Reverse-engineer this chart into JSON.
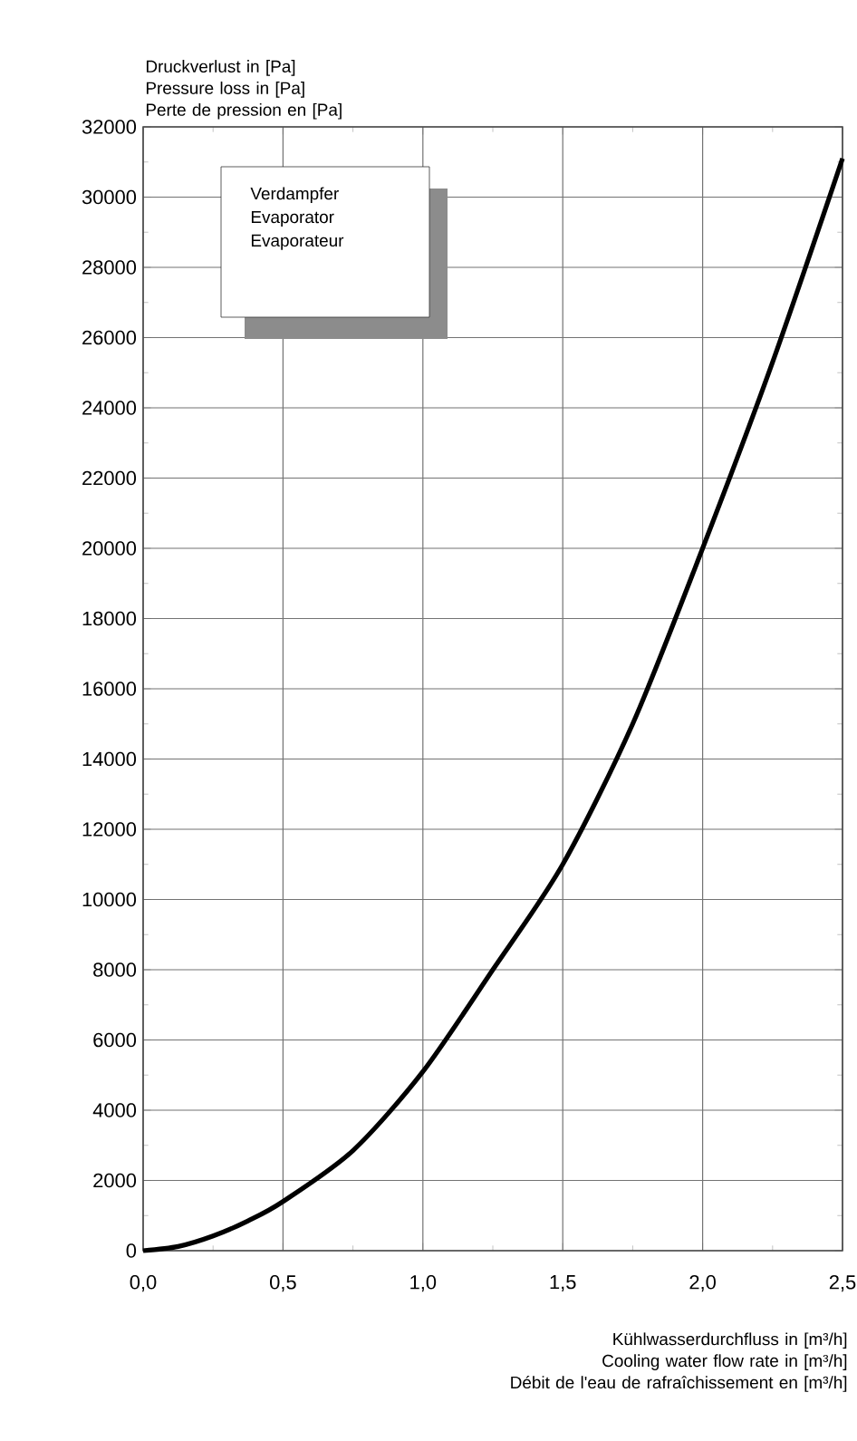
{
  "chart_data": {
    "type": "line",
    "ylabel": "Druckverlust in [Pa]\nPressure loss in [Pa]\nPerte de pression en [Pa]",
    "xlabel": "Kühlwasserdurchfluss in [m³/h]\nCooling water flow rate in [m³/h]\nDébit de l'eau de rafraîchissement en [m³/h]",
    "annotations": [
      "Verdampfer\nEvaporator\nEvaporateur"
    ],
    "x": [
      0,
      0.125,
      0.25,
      0.375,
      0.5,
      0.75,
      1.0,
      1.25,
      1.5,
      1.75,
      2.0,
      2.25,
      2.5
    ],
    "series": [
      {
        "color": "#000000",
        "values": [
          0,
          120,
          420,
          850,
          1400,
          2850,
          5100,
          8000,
          11000,
          15000,
          20000,
          25300,
          31100
        ]
      }
    ],
    "xlim": [
      0,
      2.5
    ],
    "xticks": [
      {
        "value": 0,
        "label": "0,0"
      },
      {
        "value": 0.5,
        "label": "0,5"
      },
      {
        "value": 1,
        "label": "1,0"
      },
      {
        "value": 1.5,
        "label": "1,5"
      },
      {
        "value": 2,
        "label": "2,0"
      },
      {
        "value": 2.5,
        "label": "2,5"
      }
    ],
    "ylim": [
      0,
      32000
    ],
    "yticks": [
      0,
      2000,
      4000,
      6000,
      8000,
      10000,
      12000,
      14000,
      16000,
      18000,
      20000,
      22000,
      24000,
      26000,
      28000,
      30000,
      32000
    ],
    "grid": true,
    "marker": "none",
    "line_style": "solid"
  }
}
